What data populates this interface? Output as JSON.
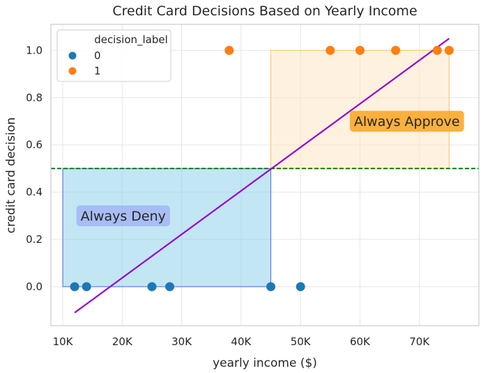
{
  "chart_data": {
    "type": "scatter",
    "title": "Credit Card Decisions Based on Yearly Income",
    "xlabel": "yearly income ($)",
    "ylabel": "credit card decision",
    "xlim": [
      8000,
      80000
    ],
    "ylim": [
      -0.165,
      1.11
    ],
    "grid": true,
    "x_ticks": [
      {
        "value": 10000,
        "label": "10K"
      },
      {
        "value": 20000,
        "label": "20K"
      },
      {
        "value": 30000,
        "label": "30K"
      },
      {
        "value": 40000,
        "label": "40K"
      },
      {
        "value": 50000,
        "label": "50K"
      },
      {
        "value": 60000,
        "label": "60K"
      },
      {
        "value": 70000,
        "label": "70K"
      }
    ],
    "y_ticks": [
      {
        "value": 0.0,
        "label": "0.0"
      },
      {
        "value": 0.2,
        "label": "0.2"
      },
      {
        "value": 0.4,
        "label": "0.4"
      },
      {
        "value": 0.6,
        "label": "0.6"
      },
      {
        "value": 0.8,
        "label": "0.8"
      },
      {
        "value": 1.0,
        "label": "1.0"
      }
    ],
    "legend": {
      "title": "decision_label",
      "placement": "top-left",
      "entries": [
        {
          "label": "0",
          "color": "#1f77b4"
        },
        {
          "label": "1",
          "color": "#ff7f0e"
        }
      ]
    },
    "series": [
      {
        "name": "0",
        "color": "#1f77b4",
        "points": [
          {
            "x": 12000,
            "y": 0
          },
          {
            "x": 14000,
            "y": 0
          },
          {
            "x": 25000,
            "y": 0
          },
          {
            "x": 28000,
            "y": 0
          },
          {
            "x": 45000,
            "y": 0
          },
          {
            "x": 50000,
            "y": 0
          }
        ]
      },
      {
        "name": "1",
        "color": "#ff7f0e",
        "points": [
          {
            "x": 38000,
            "y": 1
          },
          {
            "x": 55000,
            "y": 1
          },
          {
            "x": 60000,
            "y": 1
          },
          {
            "x": 66000,
            "y": 1
          },
          {
            "x": 73000,
            "y": 1
          },
          {
            "x": 75000,
            "y": 1
          }
        ]
      }
    ],
    "regression_line": {
      "color": "#9400d3",
      "points": [
        {
          "x": 12000,
          "y": -0.11
        },
        {
          "x": 75000,
          "y": 1.05
        }
      ]
    },
    "threshold_line": {
      "y": 0.5,
      "color": "#008000",
      "style": "dashed"
    },
    "regions": [
      {
        "label": "Always Deny",
        "x0": 10000,
        "x1": 45000,
        "y0": 0,
        "y1": 0.5,
        "fill": "#87ceeb",
        "stroke": "#4169e1",
        "label_fill": "#a4b8f5",
        "label_x": 13000,
        "label_y": 0.3
      },
      {
        "label": "Always Approve",
        "x0": 45000,
        "x1": 75000,
        "y0": 0.5,
        "y1": 1.0,
        "fill": "#ffe4bf",
        "stroke": "#f5c26b",
        "label_fill": "#faa82a",
        "label_x": 59000,
        "label_y": 0.7
      }
    ]
  }
}
